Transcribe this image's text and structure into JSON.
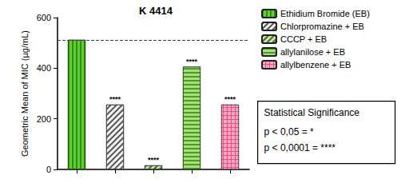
{
  "chart_data": {
    "type": "bar",
    "title": "K 4414",
    "y_label": "Geometric Mean of MIC (µg/mL)",
    "categories": [
      null,
      null,
      null,
      null,
      null
    ],
    "series": [
      {
        "name": "Ethidium Bromide (EB)",
        "color": "#5fcf2e",
        "values": [
          512,
          null,
          null,
          null,
          null
        ],
        "annotation": null
      },
      {
        "name": "Chlorpromazine + EB",
        "color": "#f2f2f2",
        "values": [
          null,
          256,
          null,
          null,
          null
        ],
        "annotation": "****"
      },
      {
        "name": "CCCP + EB",
        "color": "#c9e6a8",
        "values": [
          null,
          null,
          16,
          null,
          null
        ],
        "annotation": "****"
      },
      {
        "name": "allylanilose + EB",
        "color": "#a6e07a",
        "values": [
          null,
          null,
          null,
          406,
          null
        ],
        "annotation": "****"
      },
      {
        "name": "allylbenzene + EB",
        "color": "#e8507e",
        "values": [
          null,
          null,
          null,
          null,
          256
        ],
        "annotation": "****"
      }
    ],
    "reference_line": 512,
    "ylim": [
      0,
      600
    ],
    "yticks": [
      0,
      200,
      400,
      600
    ],
    "grid": false,
    "legend": "right",
    "tick_labels": "y",
    "significance_legend": {
      "title": "Statistical Significance",
      "items": [
        "p < 0,05 = *",
        "p < 0,0001 = ****"
      ]
    }
  }
}
